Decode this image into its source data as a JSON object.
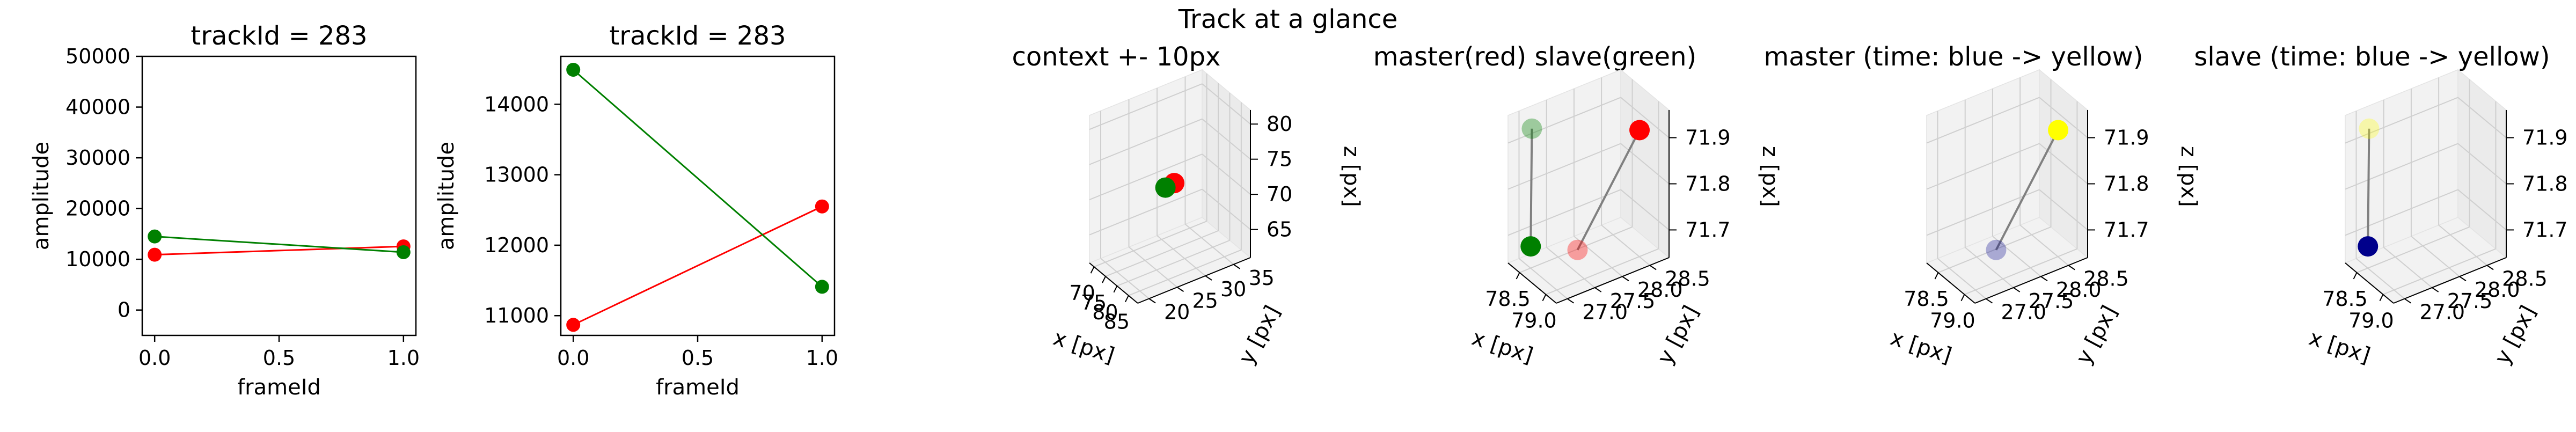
{
  "suptitle": "Track at a glance",
  "colors": {
    "master": "#ff0000",
    "slave": "#008000",
    "time_start": "#00008b",
    "time_end": "#ffff00",
    "pane": "#f2f2f2",
    "grid": "#cfcfcf"
  },
  "chart_data": [
    {
      "type": "line",
      "title": "trackId = 283",
      "xlabel": "frameId",
      "ylabel": "amplitude",
      "xlim": [
        -0.05,
        1.05
      ],
      "ylim": [
        -5000,
        50000
      ],
      "xticks": [
        "0.0",
        "0.5",
        "1.0"
      ],
      "xtick_values": [
        0.0,
        0.5,
        1.0
      ],
      "yticks": [
        "0",
        "10000",
        "20000",
        "30000",
        "40000",
        "50000"
      ],
      "ytick_values": [
        0,
        10000,
        20000,
        30000,
        40000,
        50000
      ],
      "x": [
        0,
        1
      ],
      "series": [
        {
          "color": "#ff0000",
          "values": [
            10900,
            12550
          ]
        },
        {
          "color": "#008000",
          "values": [
            14500,
            11400
          ]
        }
      ]
    },
    {
      "type": "line",
      "title": "trackId = 283",
      "xlabel": "frameId",
      "ylabel": "amplitude",
      "xlim": [
        -0.05,
        1.05
      ],
      "ylim": [
        10720,
        14680
      ],
      "xticks": [
        "0.0",
        "0.5",
        "1.0"
      ],
      "xtick_values": [
        0.0,
        0.5,
        1.0
      ],
      "yticks": [
        "11000",
        "12000",
        "13000",
        "14000"
      ],
      "ytick_values": [
        11000,
        12000,
        13000,
        14000
      ],
      "x": [
        0,
        1
      ],
      "series": [
        {
          "color": "#ff0000",
          "values": [
            10870,
            12550
          ]
        },
        {
          "color": "#008000",
          "values": [
            14490,
            11410
          ]
        }
      ]
    },
    {
      "type": "scatter",
      "projection": "3d",
      "title": "context +- 10px",
      "xlabel": "x [px]",
      "ylabel": "y [px]",
      "zlabel": "z [px]",
      "xlim": [
        68,
        89
      ],
      "ylim": [
        18,
        38
      ],
      "zlim": [
        61,
        82
      ],
      "xticks": [
        "70",
        "75",
        "80",
        "85"
      ],
      "xtick_values": [
        70,
        75,
        80,
        85
      ],
      "yticks": [
        "20",
        "25",
        "30",
        "35"
      ],
      "ytick_values": [
        20,
        25,
        30,
        35
      ],
      "zticks": [
        "65",
        "70",
        "75",
        "80"
      ],
      "ztick_values": [
        65,
        70,
        75,
        80
      ],
      "points": [
        {
          "x": 78.9,
          "y": 28.6,
          "z": 71.9,
          "color": "#ff0000"
        },
        {
          "x": 78.5,
          "y": 27.2,
          "z": 71.6,
          "color": "#008000"
        }
      ],
      "segments": []
    },
    {
      "type": "scatter",
      "projection": "3d",
      "title": "master(red) slave(green)",
      "xlabel": "x [px]",
      "ylabel": "y [px]",
      "zlabel": "z [px]",
      "xlim": [
        78.28,
        79.2
      ],
      "ylim": [
        26.8,
        28.85
      ],
      "zlim": [
        71.64,
        71.96
      ],
      "xticks": [
        "78.5",
        "79.0"
      ],
      "xtick_values": [
        78.5,
        79.0
      ],
      "yticks": [
        "27.0",
        "27.5",
        "28.0",
        "28.5"
      ],
      "ytick_values": [
        27.0,
        27.5,
        28.0,
        28.5
      ],
      "zticks": [
        "71.7",
        "71.8",
        "71.9"
      ],
      "ztick_values": [
        71.7,
        71.8,
        71.9
      ],
      "points": [
        {
          "x": 78.9,
          "y": 28.6,
          "z": 71.9,
          "color": "#ff0000",
          "alpha": 1.0
        },
        {
          "x": 79.08,
          "y": 27.3,
          "z": 71.72,
          "color": "#ff0000",
          "alpha": 0.35
        },
        {
          "x": 78.42,
          "y": 27.1,
          "z": 71.93,
          "color": "#008000",
          "alpha": 0.35
        },
        {
          "x": 78.45,
          "y": 27.05,
          "z": 71.68,
          "color": "#008000",
          "alpha": 1.0
        }
      ],
      "segments": [
        {
          "from": 0,
          "to": 1,
          "color": "#808080"
        },
        {
          "from": 2,
          "to": 3,
          "color": "#808080"
        }
      ]
    },
    {
      "type": "scatter",
      "projection": "3d",
      "title": "master (time: blue -> yellow)",
      "xlabel": "x [px]",
      "ylabel": "y [px]",
      "zlabel": "z [px]",
      "xlim": [
        78.28,
        79.2
      ],
      "ylim": [
        26.8,
        28.85
      ],
      "zlim": [
        71.64,
        71.96
      ],
      "xticks": [
        "78.5",
        "79.0"
      ],
      "xtick_values": [
        78.5,
        79.0
      ],
      "yticks": [
        "27.0",
        "27.5",
        "28.0",
        "28.5"
      ],
      "ytick_values": [
        27.0,
        27.5,
        28.0,
        28.5
      ],
      "zticks": [
        "71.7",
        "71.8",
        "71.9"
      ],
      "ztick_values": [
        71.7,
        71.8,
        71.9
      ],
      "points": [
        {
          "x": 79.08,
          "y": 27.3,
          "z": 71.72,
          "color": "#00008b",
          "alpha": 0.3
        },
        {
          "x": 78.9,
          "y": 28.6,
          "z": 71.9,
          "color": "#ffff00",
          "alpha": 1.0
        }
      ],
      "segments": [
        {
          "from": 0,
          "to": 1,
          "color": "#808080"
        }
      ]
    },
    {
      "type": "scatter",
      "projection": "3d",
      "title": "slave (time: blue -> yellow)",
      "xlabel": "x [px]",
      "ylabel": "y [px]",
      "zlabel": "z [px]",
      "xlim": [
        78.28,
        79.2
      ],
      "ylim": [
        26.8,
        28.85
      ],
      "zlim": [
        71.64,
        71.96
      ],
      "xticks": [
        "78.5",
        "79.0"
      ],
      "xtick_values": [
        78.5,
        79.0
      ],
      "yticks": [
        "27.0",
        "27.5",
        "28.0",
        "28.5"
      ],
      "ytick_values": [
        27.0,
        27.5,
        28.0,
        28.5
      ],
      "zticks": [
        "71.7",
        "71.8",
        "71.9"
      ],
      "ztick_values": [
        71.7,
        71.8,
        71.9
      ],
      "points": [
        {
          "x": 78.42,
          "y": 27.1,
          "z": 71.93,
          "color": "#ffff00",
          "alpha": 0.3
        },
        {
          "x": 78.45,
          "y": 27.05,
          "z": 71.68,
          "color": "#00008b",
          "alpha": 1.0
        }
      ],
      "segments": [
        {
          "from": 0,
          "to": 1,
          "color": "#808080"
        }
      ]
    }
  ]
}
